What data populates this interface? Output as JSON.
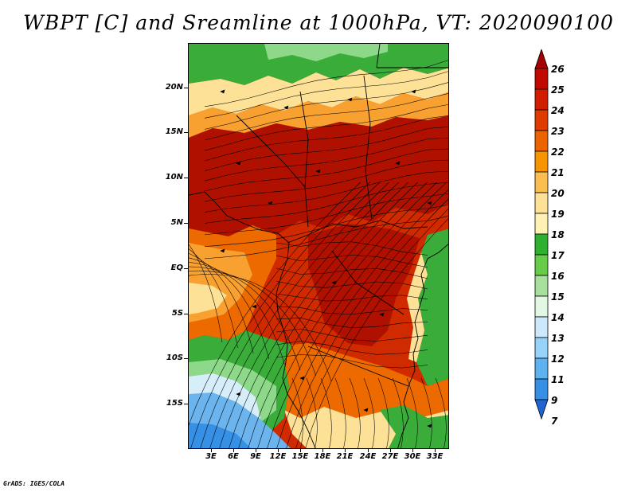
{
  "title": "WBPT [C] and Sreamline at 1000hPa, VT: 2020090100",
  "footer": "GrADS: IGES/COLA",
  "lat_labels": [
    "20N",
    "15N",
    "10N",
    "5N",
    "EQ",
    "5S",
    "10S",
    "15S"
  ],
  "lon_labels": [
    "3E",
    "6E",
    "9E",
    "12E",
    "15E",
    "18E",
    "21E",
    "24E",
    "27E",
    "30E",
    "33E"
  ],
  "colorbar": {
    "labels": [
      "26",
      "25",
      "24",
      "23",
      "22",
      "21",
      "20",
      "19",
      "18",
      "17",
      "16",
      "15",
      "14",
      "13",
      "12",
      "11",
      "9",
      "7"
    ],
    "colors": [
      "#a50000",
      "#c00a00",
      "#d21e00",
      "#e03c00",
      "#ec6400",
      "#f79400",
      "#fabe50",
      "#fde196",
      "#fff0b4",
      "#30b030",
      "#66cc4a",
      "#a6e09c",
      "#e2f8e2",
      "#cce8fa",
      "#96d2fa",
      "#5fb2f0",
      "#3690e6",
      "#1e64d2"
    ]
  },
  "colors": {
    "deep_red": "#b01000",
    "red": "#d02a00",
    "orange": "#ec6a00",
    "light_orange": "#f8a030",
    "yellow": "#fde196",
    "green": "#3aac3a",
    "light_green": "#8ed88a",
    "pale_blue": "#d6eefa",
    "blue": "#6cb4ee"
  }
}
